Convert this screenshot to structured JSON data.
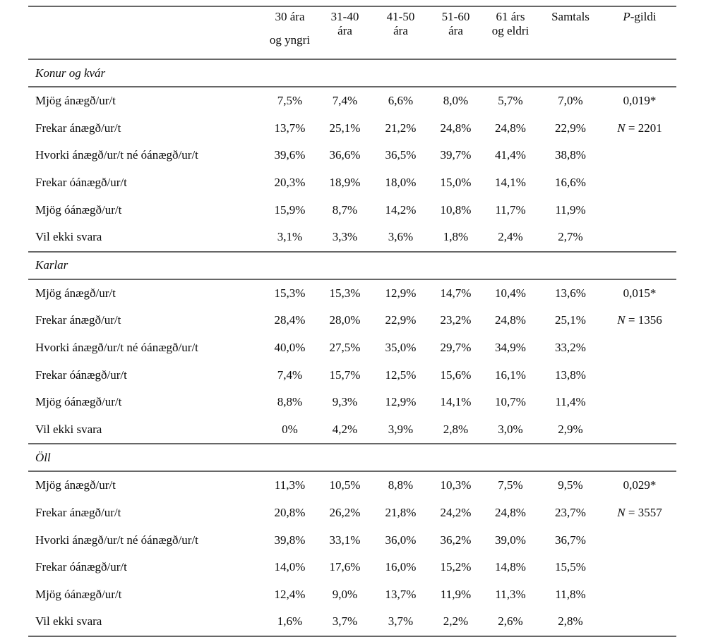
{
  "page": {
    "background": "#ffffff",
    "text_color": "#0a0a0a",
    "rule_color": "#676767"
  },
  "table": {
    "header": {
      "columns": [
        {
          "lines": [
            "30 ára",
            "og yngri"
          ],
          "wide_gap": true
        },
        {
          "lines": [
            "31-40",
            "ára"
          ]
        },
        {
          "lines": [
            "41-50",
            "ára"
          ]
        },
        {
          "lines": [
            "51-60",
            "ára"
          ]
        },
        {
          "lines": [
            "61 árs",
            "og eldri"
          ]
        },
        {
          "lines": [
            "Samtals"
          ]
        },
        {
          "italic_prefix": "P",
          "lines": [
            "-gildi"
          ]
        }
      ]
    },
    "sections": [
      {
        "title": "Konur og kvár",
        "notes": [
          {
            "italic": "",
            "text": "0,019*"
          },
          {
            "italic": "N",
            "text": " = 2201"
          }
        ],
        "rows": [
          {
            "label": "Mjög ánægð/ur/t",
            "values": [
              "7,5%",
              "7,4%",
              "6,6%",
              "8,0%",
              "5,7%",
              "7,0%"
            ]
          },
          {
            "label": "Frekar ánægð/ur/t",
            "values": [
              "13,7%",
              "25,1%",
              "21,2%",
              "24,8%",
              "24,8%",
              "22,9%"
            ]
          },
          {
            "label": "Hvorki ánægð/ur/t né óánægð/ur/t",
            "values": [
              "39,6%",
              "36,6%",
              "36,5%",
              "39,7%",
              "41,4%",
              "38,8%"
            ]
          },
          {
            "label": "Frekar óánægð/ur/t",
            "values": [
              "20,3%",
              "18,9%",
              "18,0%",
              "15,0%",
              "14,1%",
              "16,6%"
            ]
          },
          {
            "label": "Mjög óánægð/ur/t",
            "values": [
              "15,9%",
              "8,7%",
              "14,2%",
              "10,8%",
              "11,7%",
              "11,9%"
            ]
          },
          {
            "label": "Vil ekki svara",
            "values": [
              "3,1%",
              "3,3%",
              "3,6%",
              "1,8%",
              "2,4%",
              "2,7%"
            ]
          }
        ]
      },
      {
        "title": "Karlar",
        "notes": [
          {
            "italic": "",
            "text": "0,015*"
          },
          {
            "italic": "N",
            "text": " = 1356"
          }
        ],
        "rows": [
          {
            "label": "Mjög ánægð/ur/t",
            "values": [
              "15,3%",
              "15,3%",
              "12,9%",
              "14,7%",
              "10,4%",
              "13,6%"
            ]
          },
          {
            "label": "Frekar ánægð/ur/t",
            "values": [
              "28,4%",
              "28,0%",
              "22,9%",
              "23,2%",
              "24,8%",
              "25,1%"
            ]
          },
          {
            "label": "Hvorki ánægð/ur/t né óánægð/ur/t",
            "values": [
              "40,0%",
              "27,5%",
              "35,0%",
              "29,7%",
              "34,9%",
              "33,2%"
            ]
          },
          {
            "label": "Frekar óánægð/ur/t",
            "values": [
              "7,4%",
              "15,7%",
              "12,5%",
              "15,6%",
              "16,1%",
              "13,8%"
            ]
          },
          {
            "label": "Mjög óánægð/ur/t",
            "values": [
              "8,8%",
              "9,3%",
              "12,9%",
              "14,1%",
              "10,7%",
              "11,4%"
            ]
          },
          {
            "label": "Vil ekki svara",
            "values": [
              "0%",
              "4,2%",
              "3,9%",
              "2,8%",
              "3,0%",
              "2,9%"
            ]
          }
        ]
      },
      {
        "title": "Öll",
        "notes": [
          {
            "italic": "",
            "text": "0,029*"
          },
          {
            "italic": "N",
            "text": " = 3557"
          }
        ],
        "rows": [
          {
            "label": "Mjög ánægð/ur/t",
            "values": [
              "11,3%",
              "10,5%",
              "8,8%",
              "10,3%",
              "7,5%",
              "9,5%"
            ]
          },
          {
            "label": "Frekar ánægð/ur/t",
            "values": [
              "20,8%",
              "26,2%",
              "21,8%",
              "24,2%",
              "24,8%",
              "23,7%"
            ]
          },
          {
            "label": "Hvorki ánægð/ur/t né óánægð/ur/t",
            "values": [
              "39,8%",
              "33,1%",
              "36,0%",
              "36,2%",
              "39,0%",
              "36,7%"
            ]
          },
          {
            "label": "Frekar óánægð/ur/t",
            "values": [
              "14,0%",
              "17,6%",
              "16,0%",
              "15,2%",
              "14,8%",
              "15,5%"
            ]
          },
          {
            "label": "Mjög óánægð/ur/t",
            "values": [
              "12,4%",
              "9,0%",
              "13,7%",
              "11,9%",
              "11,3%",
              "11,8%"
            ]
          },
          {
            "label": "Vil ekki svara",
            "values": [
              "1,6%",
              "3,7%",
              "3,7%",
              "2,2%",
              "2,6%",
              "2,8%"
            ]
          }
        ]
      }
    ]
  }
}
